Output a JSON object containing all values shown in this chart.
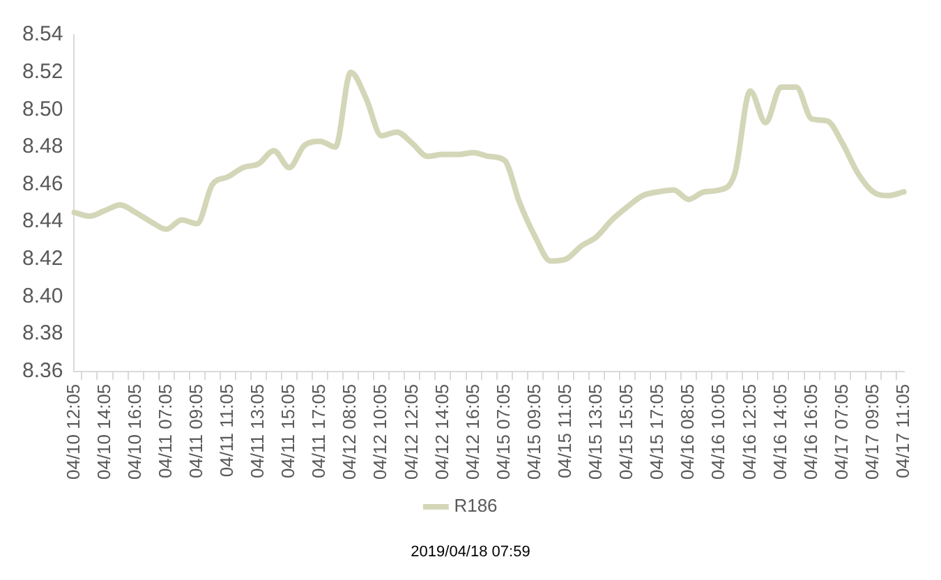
{
  "chart_data": {
    "type": "line",
    "categories": [
      "04/10 12:05",
      null,
      "04/10 14:05",
      null,
      "04/10 16:05",
      null,
      "04/11 07:05",
      null,
      "04/11 09:05",
      null,
      "04/11 11:05",
      null,
      "04/11 13:05",
      null,
      "04/11 15:05",
      null,
      "04/11 17:05",
      null,
      "04/12 08:05",
      null,
      "04/12 10:05",
      null,
      "04/12 12:05",
      null,
      "04/12 14:05",
      null,
      "04/12 16:05",
      null,
      "04/15 07:05",
      null,
      "04/15 09:05",
      null,
      "04/15 11:05",
      null,
      "04/15 13:05",
      null,
      "04/15 15:05",
      null,
      "04/15 17:05",
      null,
      "04/16 08:05",
      null,
      "04/16 10:05",
      null,
      "04/16 12:05",
      null,
      "04/16 14:05",
      null,
      "04/16 16:05",
      null,
      "04/17 07:05",
      null,
      "04/17 09:05",
      null,
      "04/17 11:05"
    ],
    "series": [
      {
        "name": "R186",
        "color": "#d4d6b8",
        "values": [
          8.445,
          8.443,
          8.446,
          8.449,
          8.445,
          8.44,
          8.436,
          8.441,
          8.439,
          8.46,
          8.464,
          8.469,
          8.471,
          8.478,
          8.469,
          8.481,
          8.483,
          8.48,
          8.52,
          8.506,
          8.486,
          8.488,
          8.482,
          8.475,
          8.476,
          8.476,
          8.477,
          8.475,
          8.473,
          8.45,
          8.432,
          8.419,
          8.42,
          8.427,
          8.432,
          8.441,
          8.448,
          8.454,
          8.456,
          8.457,
          8.452,
          8.456,
          8.457,
          8.466,
          8.51,
          8.493,
          8.512,
          8.512,
          8.495,
          8.494,
          8.482,
          8.466,
          8.456,
          8.454,
          8.456
        ]
      }
    ],
    "ylim": [
      8.36,
      8.54
    ],
    "yticks": [
      8.36,
      8.38,
      {
        "value": 8.4,
        "label": "8.40"
      },
      8.42,
      8.44,
      8.46,
      8.48,
      {
        "value": 8.5,
        "label": "8.50"
      },
      8.52,
      8.54
    ],
    "grid": false,
    "legend": "bottom",
    "marker": "none",
    "line_style": "solid",
    "annotations": [
      "2019/04/18 07:59"
    ]
  }
}
